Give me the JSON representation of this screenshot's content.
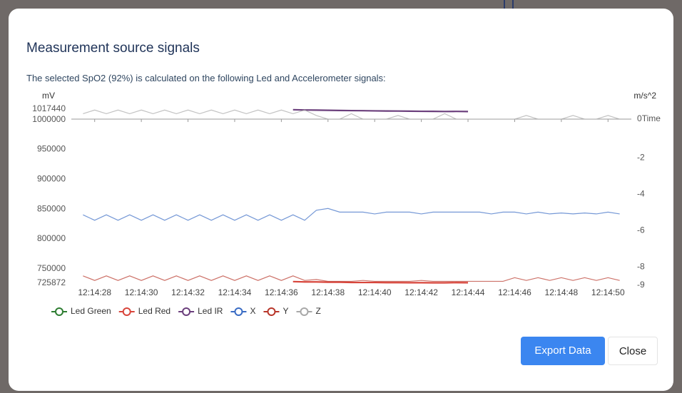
{
  "modal": {
    "title": "Measurement source signals",
    "subtitle": "The selected SpO2 (92%) is calculated on the following Led and Accelerometer signals:",
    "buttons": [
      "Export Data",
      "Close"
    ]
  },
  "chart_data": {
    "type": "line",
    "y_label": "mV",
    "y2_label": "m/s^2",
    "x_label": "Time",
    "x": [
      44067.5,
      44068,
      44068.5,
      44069,
      44069.5,
      44070,
      44070.5,
      44071,
      44071.5,
      44072,
      44072.5,
      44073,
      44073.5,
      44074,
      44074.5,
      44075,
      44075.5,
      44076,
      44076.5,
      44077,
      44077.5,
      44078,
      44078.5,
      44079,
      44079.5,
      44080,
      44080.5,
      44081,
      44081.5,
      44082,
      44082.5,
      44083,
      44083.5,
      44084,
      44084.5,
      44085,
      44085.5,
      44086,
      44086.5,
      44087,
      44087.5,
      44088,
      44088.5,
      44089,
      44089.5,
      44090,
      44090.5
    ],
    "xlim": [
      44067,
      44091
    ],
    "xticks": [
      {
        "value": 44068,
        "label": "12:14:28"
      },
      {
        "value": 44070,
        "label": "12:14:30"
      },
      {
        "value": 44072,
        "label": "12:14:32"
      },
      {
        "value": 44074,
        "label": "12:14:34"
      },
      {
        "value": 44076,
        "label": "12:14:36"
      },
      {
        "value": 44078,
        "label": "12:14:38"
      },
      {
        "value": 44080,
        "label": "12:14:40"
      },
      {
        "value": 44082,
        "label": "12:14:42"
      },
      {
        "value": 44084,
        "label": "12:14:44"
      },
      {
        "value": 44086,
        "label": "12:14:46"
      },
      {
        "value": 44088,
        "label": "12:14:48"
      },
      {
        "value": 44090,
        "label": "12:14:50"
      }
    ],
    "ylim": [
      725872,
      1017440
    ],
    "yticks": [
      725872,
      750000,
      800000,
      850000,
      900000,
      950000,
      1000000,
      1017440
    ],
    "y2lim": [
      -9,
      0.55
    ],
    "y2ticks": [
      -9,
      -8,
      -6,
      -4,
      -2,
      0
    ],
    "series": [
      {
        "name": "Led Green",
        "color": "#2e7d32",
        "values": [
          null,
          null,
          null,
          null,
          null,
          null,
          null,
          null,
          null,
          null,
          null,
          null,
          null,
          null,
          null,
          null,
          null,
          null,
          null,
          null,
          null,
          null,
          null,
          null,
          null,
          null,
          null,
          null,
          null,
          null,
          null,
          null,
          null,
          null,
          null,
          null,
          null,
          null,
          null,
          null,
          null,
          null,
          null,
          null,
          null,
          null,
          null
        ]
      },
      {
        "name": "Led Red",
        "color": "#d8453b",
        "values": [
          null,
          null,
          null,
          null,
          null,
          null,
          null,
          null,
          null,
          null,
          null,
          null,
          null,
          null,
          null,
          null,
          null,
          null,
          728500,
          728000,
          728000,
          727500,
          727500,
          727000,
          727000,
          727000,
          726800,
          726800,
          726600,
          726600,
          726500,
          726500,
          726800,
          726600,
          null,
          null,
          null,
          null,
          null,
          null,
          null,
          null,
          null,
          null,
          null,
          null,
          null
        ]
      },
      {
        "name": "Led IR",
        "color": "#6b3f7c",
        "values": [
          null,
          null,
          null,
          null,
          null,
          null,
          null,
          null,
          null,
          null,
          null,
          null,
          null,
          null,
          null,
          null,
          null,
          null,
          1016500,
          1016000,
          1015800,
          1015500,
          1015200,
          1015000,
          1014800,
          1014500,
          1014300,
          1014200,
          1014000,
          1013800,
          1013700,
          1013500,
          1013600,
          1013400,
          null,
          null,
          null,
          null,
          null,
          null,
          null,
          null,
          null,
          null,
          null,
          null,
          null
        ]
      },
      {
        "name": "X",
        "color": "#3a6cc4",
        "axis": "y2",
        "values": [
          -5.25,
          -5.55,
          -5.25,
          -5.55,
          -5.25,
          -5.55,
          -5.25,
          -5.55,
          -5.25,
          -5.55,
          -5.25,
          -5.55,
          -5.25,
          -5.55,
          -5.25,
          -5.55,
          -5.25,
          -5.55,
          -5.25,
          -5.55,
          -5.0,
          -4.9,
          -5.1,
          -5.1,
          -5.1,
          -5.2,
          -5.1,
          -5.1,
          -5.1,
          -5.2,
          -5.1,
          -5.1,
          -5.1,
          -5.1,
          -5.1,
          -5.2,
          -5.1,
          -5.1,
          -5.2,
          -5.1,
          -5.2,
          -5.15,
          -5.2,
          -5.15,
          -5.2,
          -5.1,
          -5.2
        ]
      },
      {
        "name": "Y",
        "color": "#b8362a",
        "axis": "y2",
        "values": [
          -8.6,
          -8.85,
          -8.6,
          -8.85,
          -8.6,
          -8.85,
          -8.6,
          -8.85,
          -8.6,
          -8.85,
          -8.6,
          -8.85,
          -8.6,
          -8.85,
          -8.6,
          -8.85,
          -8.6,
          -8.85,
          -8.6,
          -8.85,
          -8.8,
          -8.9,
          -8.9,
          -8.9,
          -8.85,
          -8.9,
          -8.9,
          -8.9,
          -8.9,
          -8.85,
          -8.9,
          -8.9,
          -8.9,
          -8.9,
          -8.9,
          -8.9,
          -8.9,
          -8.7,
          -8.85,
          -8.7,
          -8.85,
          -8.7,
          -8.85,
          -8.7,
          -8.85,
          -8.7,
          -8.85
        ]
      },
      {
        "name": "Z",
        "color": "#a8a8a8",
        "axis": "y2",
        "values": [
          0.3,
          0.5,
          0.3,
          0.5,
          0.3,
          0.5,
          0.3,
          0.5,
          0.3,
          0.5,
          0.3,
          0.5,
          0.3,
          0.5,
          0.3,
          0.5,
          0.3,
          0.5,
          0.3,
          0.5,
          0.2,
          0,
          0,
          0.3,
          0,
          0,
          0,
          0.2,
          0,
          0,
          0,
          0.3,
          0,
          0,
          0,
          0,
          0,
          0,
          0.2,
          0,
          0,
          0,
          0.2,
          0,
          0,
          0.2,
          0
        ]
      }
    ]
  }
}
